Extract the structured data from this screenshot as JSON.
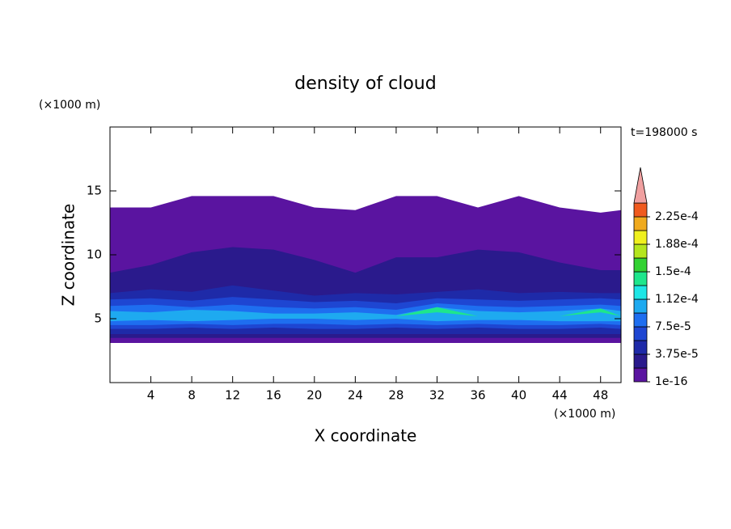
{
  "chart_data": {
    "type": "contour",
    "title": "density of cloud",
    "xlabel": "X coordinate",
    "ylabel": "Z coordinate",
    "x_unit": "(×1000 m)",
    "y_unit": "(×1000 m)",
    "time_label": "t=198000 s",
    "xlim": [
      0,
      50
    ],
    "ylim": [
      0,
      20
    ],
    "xticks": [
      4,
      8,
      12,
      16,
      20,
      24,
      28,
      32,
      36,
      40,
      44,
      48
    ],
    "yticks": [
      5,
      10,
      15
    ],
    "x": [
      0,
      4,
      8,
      12,
      16,
      20,
      24,
      28,
      32,
      36,
      40,
      44,
      48,
      50
    ],
    "layers": [
      {
        "level": 1e-16,
        "bottom": [
          3.1,
          3.1,
          3.1,
          3.1,
          3.1,
          3.1,
          3.1,
          3.1,
          3.1,
          3.1,
          3.1,
          3.1,
          3.1,
          3.1
        ],
        "top": [
          13.7,
          13.7,
          14.6,
          14.6,
          14.6,
          13.7,
          13.5,
          14.6,
          14.6,
          13.7,
          14.6,
          13.7,
          13.3,
          13.5
        ]
      },
      {
        "level": 1.875e-05,
        "bottom": [
          3.5,
          3.5,
          3.5,
          3.5,
          3.5,
          3.5,
          3.5,
          3.5,
          3.5,
          3.5,
          3.5,
          3.5,
          3.5,
          3.5
        ],
        "top": [
          8.6,
          9.2,
          10.2,
          10.6,
          10.4,
          9.6,
          8.6,
          9.8,
          9.8,
          10.4,
          10.2,
          9.4,
          8.8,
          8.8
        ]
      },
      {
        "level": 3.75e-05,
        "bottom": [
          3.8,
          3.8,
          3.8,
          3.8,
          3.8,
          3.8,
          3.8,
          3.8,
          3.8,
          3.8,
          3.8,
          3.8,
          3.8,
          3.8
        ],
        "top": [
          7.0,
          7.3,
          7.1,
          7.6,
          7.2,
          6.8,
          7.0,
          6.9,
          7.1,
          7.3,
          7.0,
          7.1,
          7.0,
          7.0
        ]
      },
      {
        "level": 5.625e-05,
        "bottom": [
          4.2,
          4.2,
          4.3,
          4.2,
          4.3,
          4.2,
          4.2,
          4.3,
          4.2,
          4.3,
          4.2,
          4.2,
          4.3,
          4.2
        ],
        "top": [
          6.5,
          6.6,
          6.4,
          6.7,
          6.5,
          6.3,
          6.4,
          6.2,
          6.6,
          6.5,
          6.4,
          6.5,
          6.6,
          6.5
        ]
      },
      {
        "level": 7.5e-05,
        "bottom": [
          4.5,
          4.5,
          4.6,
          4.5,
          4.6,
          4.6,
          4.5,
          4.6,
          4.5,
          4.6,
          4.5,
          4.5,
          4.6,
          4.5
        ],
        "top": [
          6.0,
          6.1,
          5.9,
          6.1,
          5.9,
          5.8,
          5.9,
          5.7,
          6.2,
          6.0,
          5.9,
          6.0,
          6.1,
          6.0
        ]
      },
      {
        "level": 9.375e-05,
        "bottom": [
          4.8,
          4.9,
          4.8,
          4.9,
          5.0,
          5.0,
          4.9,
          5.0,
          4.8,
          4.9,
          4.9,
          4.8,
          4.8,
          4.8
        ],
        "top": [
          5.6,
          5.5,
          5.7,
          5.6,
          5.4,
          5.4,
          5.5,
          5.3,
          5.9,
          5.6,
          5.5,
          5.6,
          5.8,
          5.6
        ]
      },
      {
        "level": 0.00013125,
        "bottom": [
          5.2,
          5.2,
          5.2,
          5.2,
          5.2,
          5.2,
          5.2,
          5.2,
          5.5,
          5.2,
          5.2,
          5.2,
          5.5,
          5.2
        ],
        "top": [
          5.2,
          5.2,
          5.2,
          5.2,
          5.2,
          5.2,
          5.2,
          5.2,
          5.9,
          5.2,
          5.2,
          5.2,
          5.8,
          5.2
        ]
      }
    ],
    "colorbar": {
      "levels": [
        1e-16,
        1.875e-05,
        3.75e-05,
        5.625e-05,
        7.5e-05,
        9.375e-05,
        0.0001125,
        0.00013125,
        0.00015,
        0.00016875,
        0.0001875,
        0.00020625,
        0.000225,
        0.00024375
      ],
      "colors": [
        "#5a14a0",
        "#2a1a8c",
        "#1e2aa8",
        "#1e46d2",
        "#1e6ef0",
        "#1eaaf0",
        "#1ee6e6",
        "#1ee68c",
        "#32d232",
        "#b4e61e",
        "#f0f01e",
        "#f0aa1e",
        "#f05a1e"
      ],
      "extend_color": "#f0a0a0",
      "ticks": [
        {
          "value": 1e-16,
          "label": "1e-16"
        },
        {
          "value": 3.75e-05,
          "label": "3.75e-5"
        },
        {
          "value": 7.5e-05,
          "label": "7.5e-5"
        },
        {
          "value": 0.0001125,
          "label": "1.12e-4"
        },
        {
          "value": 0.00015,
          "label": "1.5e-4"
        },
        {
          "value": 0.0001875,
          "label": "1.88e-4"
        },
        {
          "value": 0.000225,
          "label": "2.25e-4"
        }
      ]
    }
  }
}
